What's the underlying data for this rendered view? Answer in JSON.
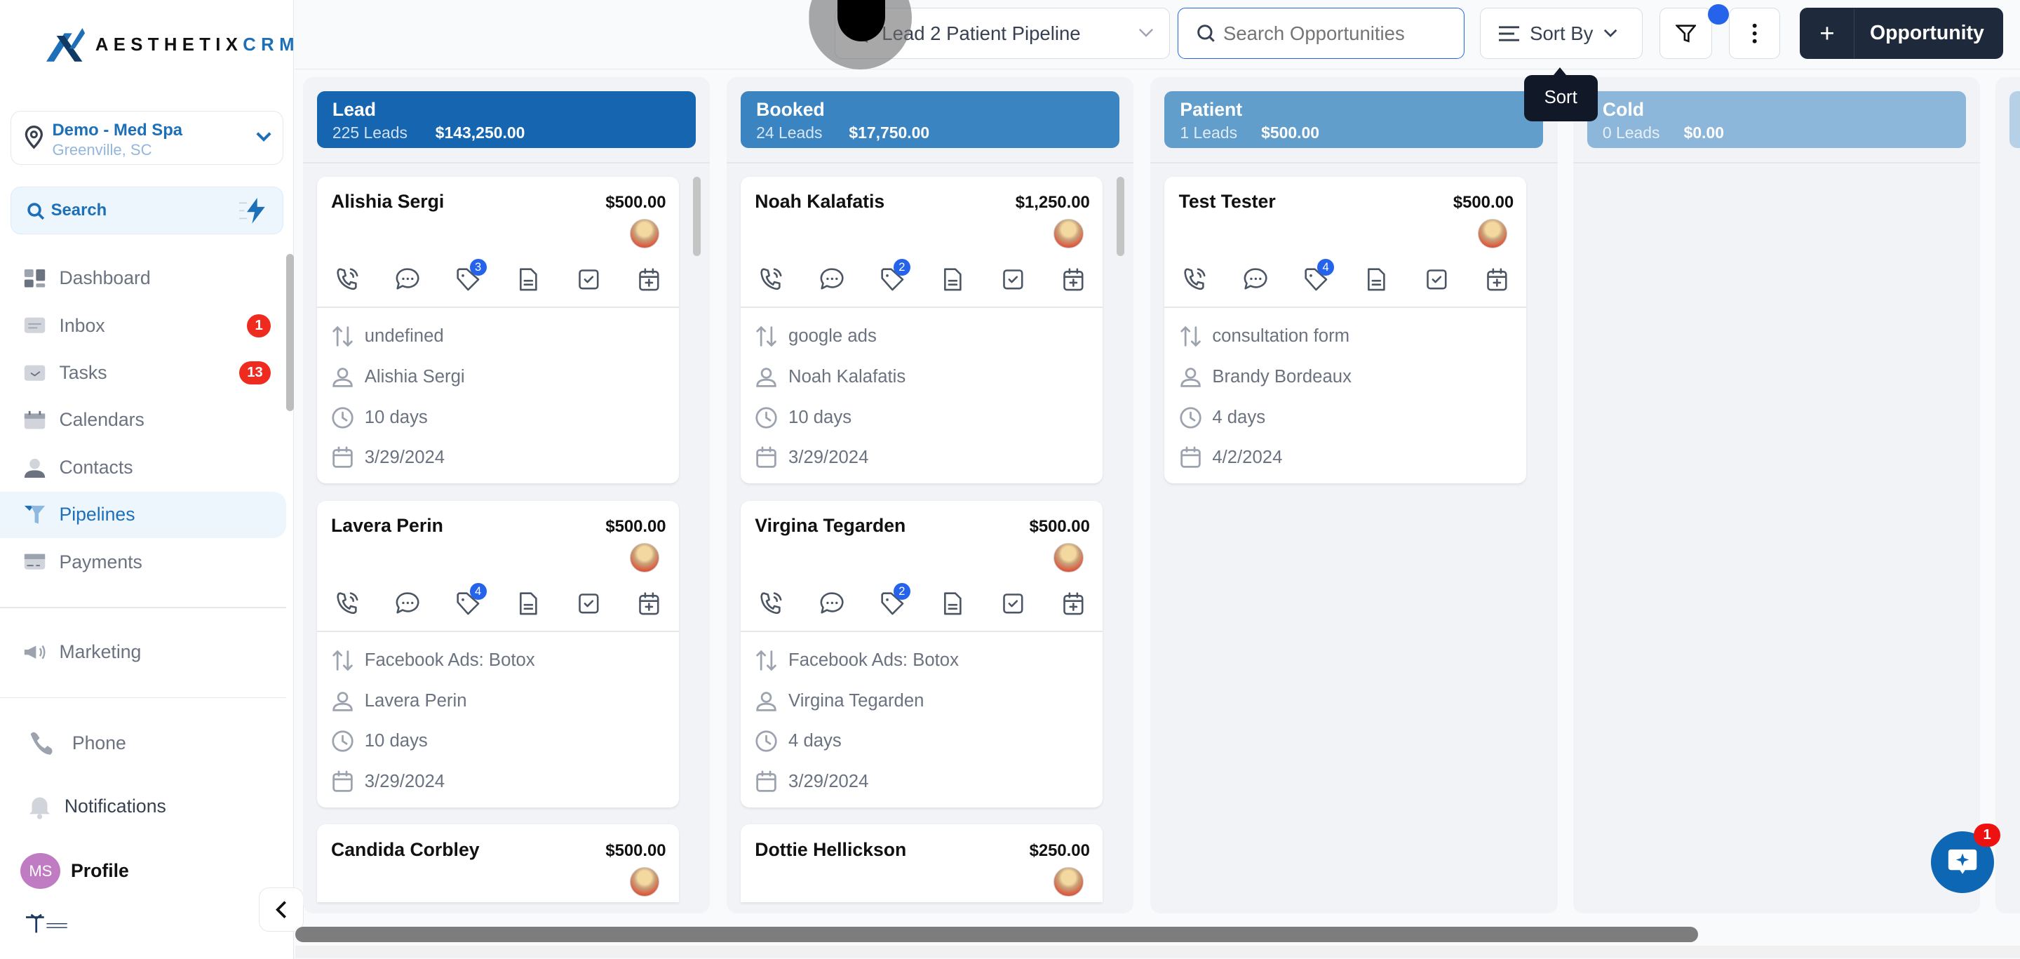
{
  "sidebar": {
    "logo": {
      "brand": "AESTHETIX",
      "accent": "CRM"
    },
    "location": {
      "name": "Demo - Med Spa",
      "city": "Greenville, SC"
    },
    "search_label": "Search",
    "nav": [
      {
        "label": "Dashboard",
        "icon": "dashboard-icon"
      },
      {
        "label": "Inbox",
        "icon": "inbox-icon",
        "badge": "1"
      },
      {
        "label": "Tasks",
        "icon": "tasks-icon",
        "badge": "13"
      },
      {
        "label": "Calendars",
        "icon": "calendar-icon"
      },
      {
        "label": "Contacts",
        "icon": "contacts-icon"
      },
      {
        "label": "Pipelines",
        "icon": "funnel-icon",
        "active": true
      },
      {
        "label": "Payments",
        "icon": "card-icon"
      }
    ],
    "marketing": "Marketing",
    "phone": "Phone",
    "notifications": "Notifications",
    "profile": {
      "initials": "MS",
      "label": "Profile"
    }
  },
  "topbar": {
    "pipeline": "Lead 2 Patient Pipeline",
    "search_placeholder": "Search Opportunities",
    "sort_label": "Sort By",
    "sort_tooltip": "Sort",
    "add_label": "Opportunity"
  },
  "colors": {
    "accent": "#1d6fb8",
    "dark": "#1e293b",
    "badge": "#ef2b1f",
    "tag": "#2563eb"
  },
  "columns": [
    {
      "name": "Lead",
      "count": "225 Leads",
      "value": "$143,250.00",
      "color": "#1565b0",
      "cards": [
        {
          "name": "Alishia Sergi",
          "amount": "$500.00",
          "tags": "3",
          "source": "undefined",
          "contact": "Alishia Sergi",
          "age": "10 days",
          "date": "3/29/2024"
        },
        {
          "name": "Lavera Perin",
          "amount": "$500.00",
          "tags": "4",
          "source": "Facebook Ads: Botox",
          "contact": "Lavera Perin",
          "age": "10 days",
          "date": "3/29/2024"
        },
        {
          "name": "Candida Corbley",
          "amount": "$500.00"
        }
      ]
    },
    {
      "name": "Booked",
      "count": "24 Leads",
      "value": "$17,750.00",
      "color": "#3a84c2",
      "cards": [
        {
          "name": "Noah Kalafatis",
          "amount": "$1,250.00",
          "tags": "2",
          "source": "google ads",
          "contact": "Noah Kalafatis",
          "age": "10 days",
          "date": "3/29/2024"
        },
        {
          "name": "Virgina Tegarden",
          "amount": "$500.00",
          "tags": "2",
          "source": "Facebook Ads: Botox",
          "contact": "Virgina Tegarden",
          "age": "4 days",
          "date": "3/29/2024"
        },
        {
          "name": "Dottie Hellickson",
          "amount": "$250.00"
        }
      ]
    },
    {
      "name": "Patient",
      "count": "1 Leads",
      "value": "$500.00",
      "color": "#629ecb",
      "cards": [
        {
          "name": "Test Tester",
          "amount": "$500.00",
          "tags": "4",
          "source": "consultation form",
          "contact": "Brandy Bordeaux",
          "age": "4 days",
          "date": "4/2/2024"
        }
      ]
    },
    {
      "name": "Cold",
      "count": "0 Leads",
      "value": "$0.00",
      "color": "#8cb6da",
      "cards": []
    }
  ],
  "chat_badge": "1"
}
